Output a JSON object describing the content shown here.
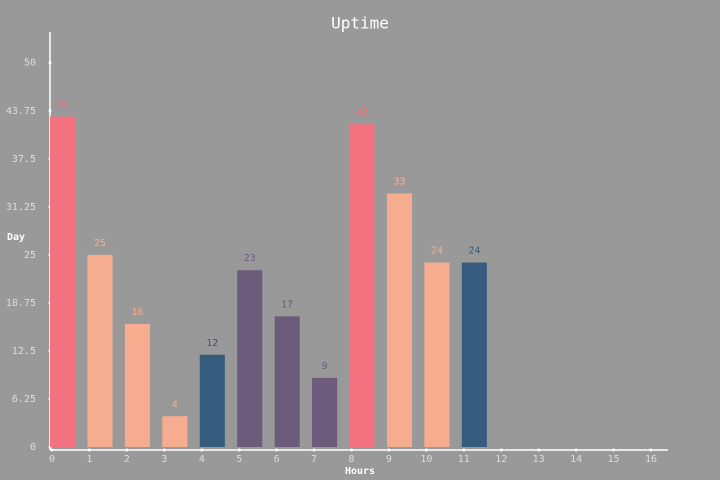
{
  "chart_data": {
    "type": "bar",
    "title": "Uptime",
    "x_label": "Hours",
    "y_label": "Day",
    "x": [
      0,
      1,
      2,
      3,
      4,
      5,
      6,
      7,
      8,
      9,
      10,
      11
    ],
    "values": [
      43,
      25,
      16,
      4,
      12,
      23,
      17,
      9,
      42,
      33,
      24,
      24
    ],
    "colors": [
      "#f4717f",
      "#f6ad8f",
      "#f6ad8f",
      "#f6ad8f",
      "#355c7d",
      "#6c5b7b",
      "#6c5b7b",
      "#6c5b7b",
      "#f4717f",
      "#f6ad8f",
      "#f6ad8f",
      "#355c7d"
    ],
    "xlim": [
      0,
      16
    ],
    "xticks": [
      0,
      1,
      2,
      3,
      4,
      5,
      6,
      7,
      8,
      9,
      10,
      11,
      12,
      13,
      14,
      15,
      16
    ],
    "ylim": [
      0,
      54
    ],
    "yticks": [
      0,
      6.25,
      12.5,
      18.75,
      25,
      31.25,
      37.5,
      43.75,
      50
    ],
    "background": "#999999",
    "axis_color": "#ffffff"
  }
}
